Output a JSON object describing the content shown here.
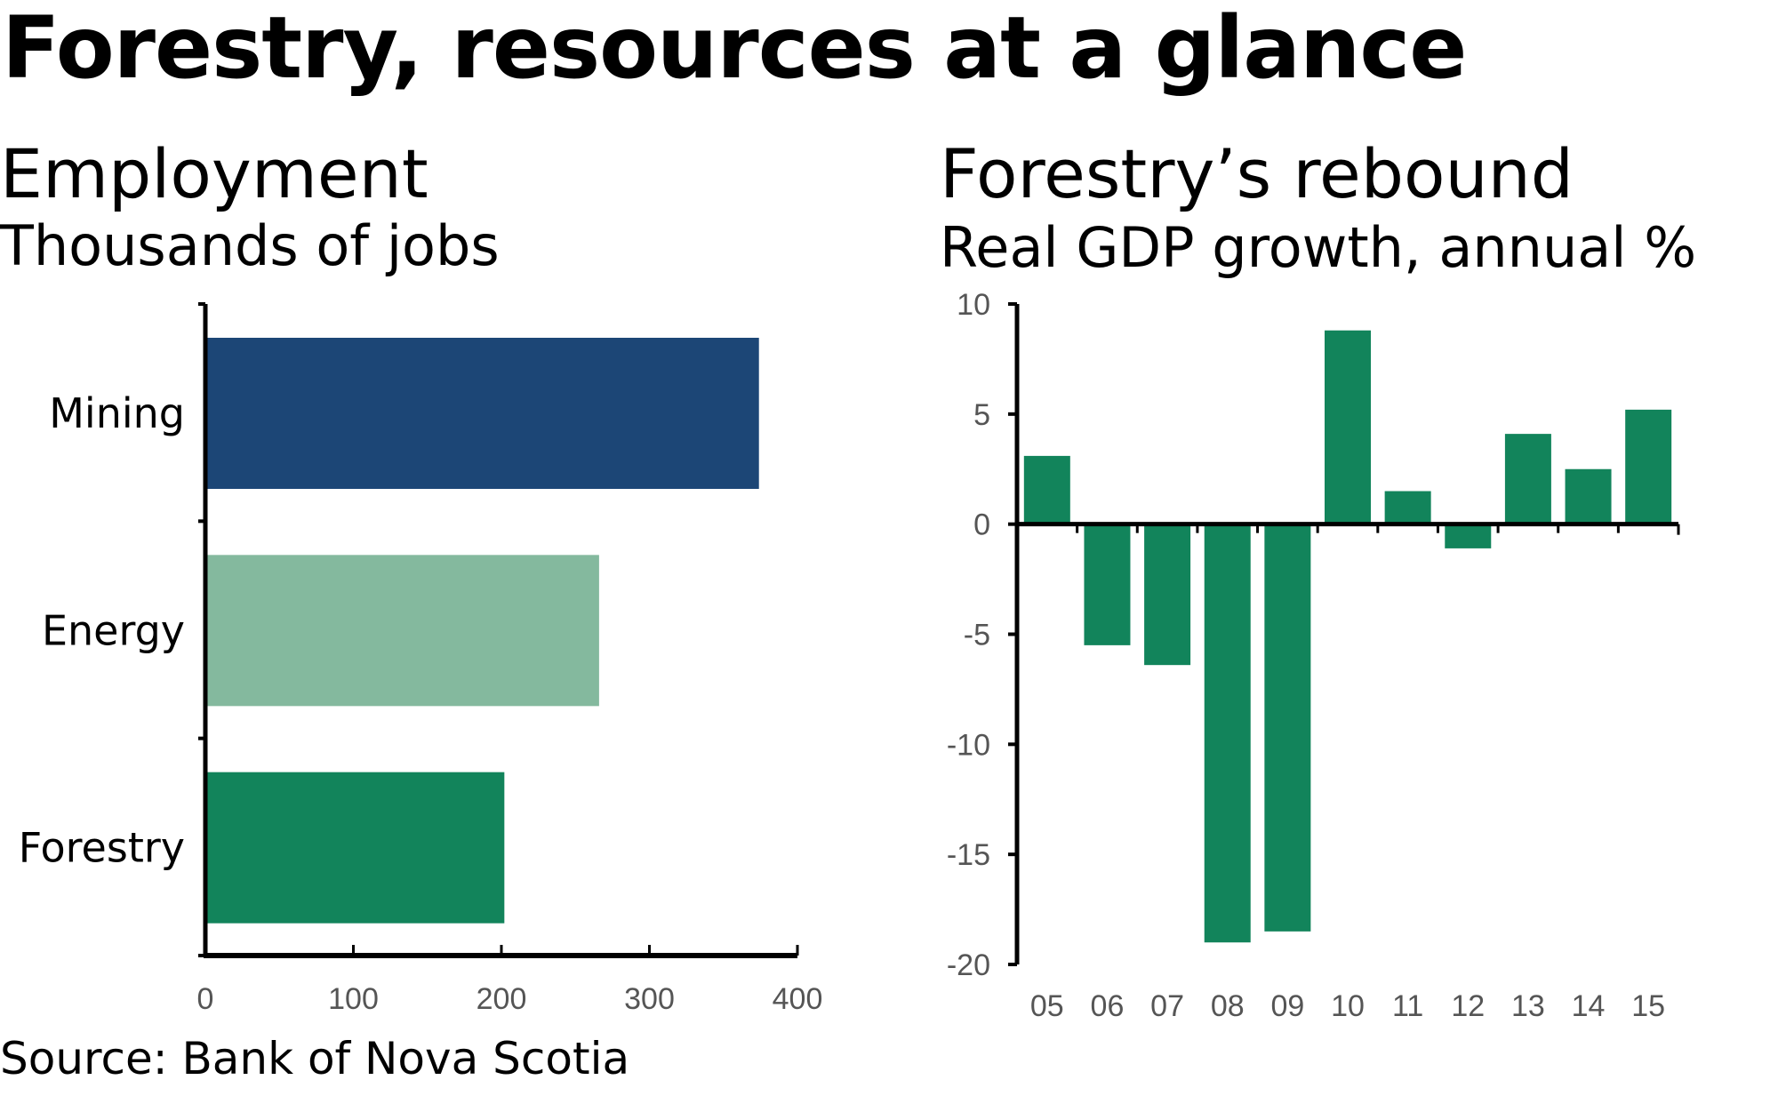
{
  "title": "Forestry, resources at a glance",
  "source": "Source: Bank of Nova Scotia",
  "colors": {
    "mining": "#1c4676",
    "energy": "#84b99e",
    "forestry": "#12845b",
    "axis": "#000000",
    "tick_text": "#555555"
  },
  "chart_data": [
    {
      "type": "bar",
      "orientation": "horizontal",
      "title": "Employment",
      "subtitle": "Thousands of jobs",
      "categories": [
        "Mining",
        "Energy",
        "Forestry"
      ],
      "values": [
        374,
        266,
        202
      ],
      "xlabel": "",
      "ylabel": "",
      "xlim": [
        0,
        400
      ],
      "xticks": [
        "0",
        "100",
        "200",
        "300",
        "400"
      ],
      "grid": false,
      "legend": "none"
    },
    {
      "type": "bar",
      "orientation": "vertical",
      "title": "Forestry’s rebound",
      "subtitle": "Real GDP growth, annual %",
      "categories": [
        "05",
        "06",
        "07",
        "08",
        "09",
        "10",
        "11",
        "12",
        "13",
        "14",
        "15"
      ],
      "values": [
        3.1,
        -5.5,
        -6.4,
        -19.0,
        -18.5,
        8.8,
        1.5,
        -1.1,
        4.1,
        2.5,
        5.2
      ],
      "xlabel": "",
      "ylabel": "",
      "ylim": [
        -20,
        10
      ],
      "yticks": [
        "10",
        "5",
        "0",
        "-5",
        "-10",
        "-15",
        "-20"
      ],
      "grid": false,
      "legend": "none"
    }
  ]
}
